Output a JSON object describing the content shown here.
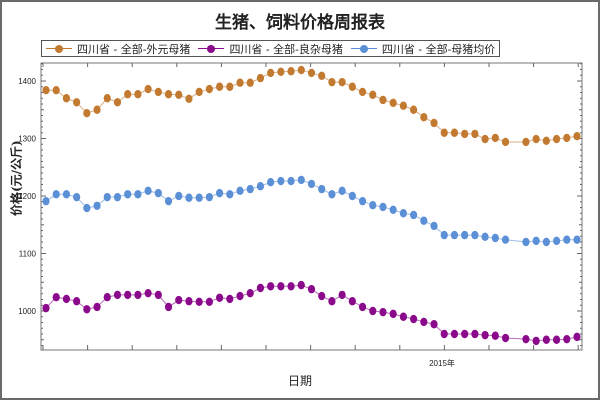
{
  "chart_data": {
    "type": "line",
    "title": "生猪、饲料价格周报表",
    "xlabel": "日期",
    "ylabel": "价格(元/公斤)",
    "ylim": [
      930,
      1440
    ],
    "yticks": [
      1000,
      1100,
      1200,
      1300,
      1400
    ],
    "x_tick_labels": [
      {
        "index": 39,
        "label": "2015年"
      }
    ],
    "x_count": 53,
    "grid": false,
    "legend_position": "top",
    "series": [
      {
        "name": "四川省 - 全部-外元母猪",
        "color": "#c27a30",
        "values": [
          1384,
          1384,
          1370,
          1363,
          1344,
          1350,
          1370,
          1363,
          1377,
          1377,
          1386,
          1381,
          1377,
          1376,
          1369,
          1381,
          1386,
          1390,
          1390,
          1397,
          1397,
          1405,
          1414,
          1416,
          1417,
          1419,
          1414,
          1409,
          1398,
          1398,
          1390,
          1381,
          1376,
          1367,
          1362,
          1357,
          1350,
          1337,
          1327,
          1310,
          1310,
          1308,
          1308,
          1299,
          1301,
          1294,
          null,
          1294,
          1299,
          1296,
          1299,
          1301,
          1304
        ]
      },
      {
        "name": "四川省 - 全部-良杂母猪",
        "color": "#8b0a8b",
        "values": [
          1005,
          1024,
          1021,
          1017,
          1003,
          1007,
          1024,
          1028,
          1028,
          1028,
          1031,
          1028,
          1007,
          1019,
          1017,
          1016,
          1016,
          1023,
          1021,
          1026,
          1031,
          1040,
          1043,
          1043,
          1043,
          1045,
          1038,
          1026,
          1017,
          1028,
          1017,
          1007,
          1000,
          998,
          995,
          990,
          986,
          981,
          977,
          960,
          960,
          960,
          960,
          958,
          957,
          953,
          null,
          951,
          948,
          950,
          950,
          951,
          955
        ]
      },
      {
        "name": "四川省 - 全部-母猪均价",
        "color": "#5b8fd6",
        "values": [
          1191,
          1203,
          1203,
          1198,
          1179,
          1183,
          1198,
          1198,
          1203,
          1203,
          1209,
          1205,
          1191,
          1200,
          1197,
          1197,
          1198,
          1205,
          1203,
          1209,
          1212,
          1217,
          1224,
          1226,
          1226,
          1228,
          1221,
          1212,
          1203,
          1209,
          1200,
          1191,
          1184,
          1181,
          1176,
          1170,
          1167,
          1157,
          1148,
          1132,
          1132,
          1132,
          1132,
          1129,
          1127,
          1124,
          null,
          1120,
          1122,
          1120,
          1122,
          1124,
          1124
        ]
      }
    ]
  }
}
